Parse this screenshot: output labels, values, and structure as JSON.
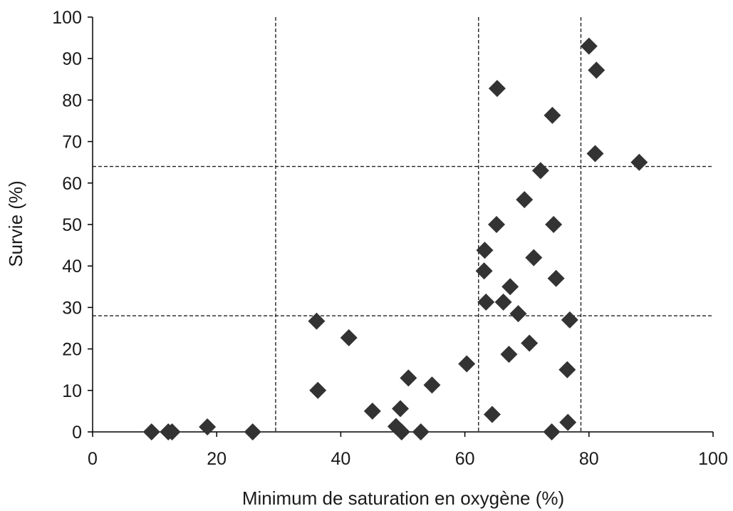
{
  "chart_data": {
    "type": "scatter",
    "title": "",
    "xlabel": "Minimum de saturation en oxygène (%)",
    "ylabel": "Survie (%)",
    "xlim": [
      0,
      100
    ],
    "ylim": [
      0,
      100
    ],
    "x_ticks": [
      0,
      20,
      40,
      60,
      80,
      100
    ],
    "y_ticks": [
      0,
      10,
      20,
      30,
      40,
      50,
      60,
      70,
      80,
      90,
      100
    ],
    "grid": false,
    "legend": "none",
    "marker": "diamond",
    "marker_color": "#333333",
    "vlines": [
      29.5,
      62.2,
      78.7
    ],
    "hlines": [
      28,
      64
    ],
    "points": [
      [
        9.5,
        0
      ],
      [
        12.2,
        0
      ],
      [
        12.8,
        0
      ],
      [
        18.5,
        1.2
      ],
      [
        25.8,
        0
      ],
      [
        36.1,
        26.7
      ],
      [
        36.3,
        10
      ],
      [
        41.3,
        22.7
      ],
      [
        45.1,
        5
      ],
      [
        48.9,
        1.3
      ],
      [
        49.6,
        5.6
      ],
      [
        49.8,
        0
      ],
      [
        50.9,
        13
      ],
      [
        52.9,
        0
      ],
      [
        54.7,
        11.3
      ],
      [
        60.3,
        16.4
      ],
      [
        63.1,
        38.8
      ],
      [
        63.2,
        43.8
      ],
      [
        63.4,
        31.3
      ],
      [
        64.4,
        4.2
      ],
      [
        65.1,
        50
      ],
      [
        65.2,
        82.8
      ],
      [
        66.2,
        31.3
      ],
      [
        67.1,
        18.7
      ],
      [
        67.3,
        35
      ],
      [
        68.6,
        28.5
      ],
      [
        69.6,
        56
      ],
      [
        70.4,
        21.4
      ],
      [
        71.1,
        42
      ],
      [
        72.2,
        63
      ],
      [
        74.0,
        0
      ],
      [
        74.1,
        76.3
      ],
      [
        74.3,
        50
      ],
      [
        74.7,
        37
      ],
      [
        76.5,
        15
      ],
      [
        76.6,
        2.3
      ],
      [
        76.9,
        27
      ],
      [
        80.0,
        93
      ],
      [
        81.0,
        67.1
      ],
      [
        81.2,
        87.2
      ],
      [
        88.1,
        65
      ]
    ]
  }
}
